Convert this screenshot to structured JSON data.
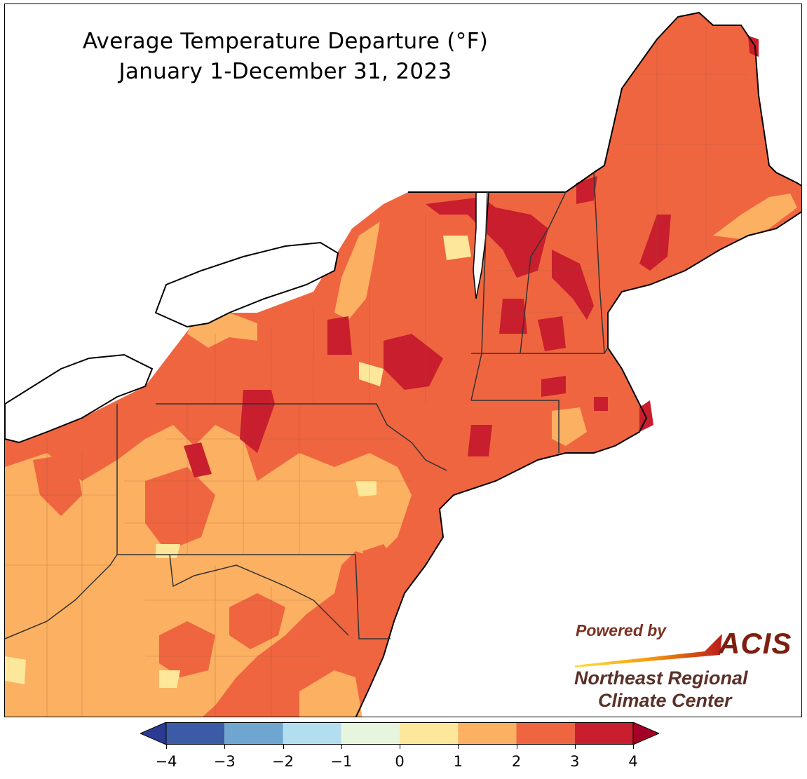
{
  "title": {
    "line1": "Average Temperature Departure (°F)",
    "line2": "January 1-December 31, 2023"
  },
  "logo": {
    "powered_by": "Powered by",
    "acis": "ACIS",
    "org_line1": "Northeast Regional",
    "org_line2": "Climate Center"
  },
  "colorbar": {
    "ticks": [
      "−4",
      "−3",
      "−2",
      "−1",
      "0",
      "1",
      "2",
      "3",
      "4"
    ],
    "bins": [
      {
        "range": "-4 to -3",
        "color": "#3c5ba6"
      },
      {
        "range": "-3 to -2",
        "color": "#6fa6cf"
      },
      {
        "range": "-2 to -1",
        "color": "#b3def0"
      },
      {
        "range": "-1 to 0",
        "color": "#e8f5de"
      },
      {
        "range": "0 to 1",
        "color": "#fde79a"
      },
      {
        "range": "1 to 2",
        "color": "#fcb061"
      },
      {
        "range": "2 to 3",
        "color": "#ef6540"
      },
      {
        "range": "3 to 4",
        "color": "#c81e2d"
      }
    ],
    "under_color": "#2b3a93",
    "over_color": "#a50026"
  },
  "map_colors": {
    "water": "#ffffff",
    "range_0_1": "#fde79a",
    "range_1_2": "#fcb061",
    "range_2_3": "#ef6540",
    "range_3_4": "#c81e2d"
  },
  "legend_units": "°F"
}
